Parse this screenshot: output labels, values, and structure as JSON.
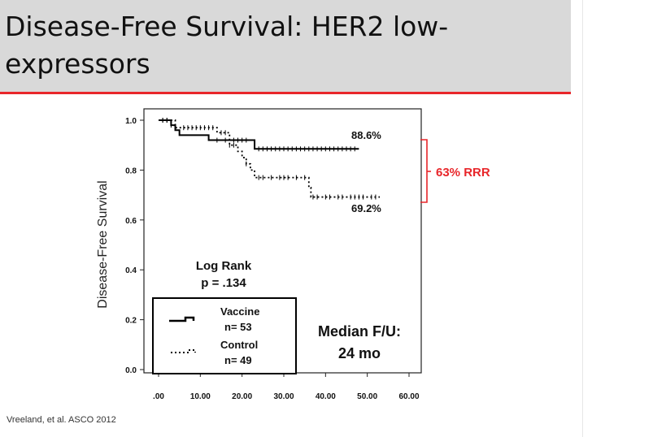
{
  "slide": {
    "title": "Disease-Free Survival: HER2 low-expressors",
    "citation": "Vreeland, et al.  ASCO 2012"
  },
  "chart_data": {
    "type": "line",
    "chart_subtype": "kaplan-meier",
    "title": "",
    "xlabel": "",
    "ylabel": "Disease-Free Survival",
    "xlim": [
      0,
      60
    ],
    "ylim": [
      0,
      1.0
    ],
    "x_ticks": [
      ".00",
      "10.00",
      "20.00",
      "30.00",
      "40.00",
      "50.00",
      "60.00"
    ],
    "y_ticks": [
      "0.0",
      "0.2",
      "0.4",
      "0.6",
      "0.8",
      "1.0"
    ],
    "grid": false,
    "series": [
      {
        "name": "Vaccine",
        "n_label": "n= 53",
        "line_style": "solid",
        "steps": [
          [
            0,
            1.0
          ],
          [
            3,
            0.98
          ],
          [
            4,
            0.96
          ],
          [
            5,
            0.94
          ],
          [
            12,
            0.92
          ],
          [
            23,
            0.885
          ],
          [
            48,
            0.885
          ]
        ],
        "censor_x": [
          1,
          2,
          3,
          14,
          16,
          18,
          19,
          20,
          21,
          24,
          25,
          26,
          27,
          28,
          29,
          30,
          31,
          32,
          33,
          34,
          35,
          36,
          37,
          38,
          39,
          40,
          41,
          42,
          43,
          44,
          45,
          46,
          47
        ],
        "end_label": "88.6%"
      },
      {
        "name": "Control",
        "n_label": "n= 49",
        "line_style": "dotted",
        "steps": [
          [
            0,
            1.0
          ],
          [
            4,
            0.97
          ],
          [
            14,
            0.95
          ],
          [
            17,
            0.9
          ],
          [
            19,
            0.875
          ],
          [
            20,
            0.85
          ],
          [
            21,
            0.825
          ],
          [
            22,
            0.8
          ],
          [
            23,
            0.77
          ],
          [
            36,
            0.73
          ],
          [
            36.5,
            0.692
          ],
          [
            53,
            0.692
          ]
        ],
        "censor_x": [
          1,
          2,
          6,
          7,
          8,
          9,
          10,
          11,
          12,
          13,
          15,
          16,
          17,
          18,
          21,
          24,
          25,
          27,
          29,
          30,
          31,
          33,
          35,
          37,
          38,
          40,
          41,
          43,
          44,
          46,
          47,
          48,
          49,
          51,
          52
        ],
        "end_label": "69.2%"
      }
    ],
    "legend_position": "bottom-left",
    "annotations": {
      "log_rank_label": "Log Rank",
      "p_value": "p = .134",
      "median_fu_label": "Median F/U:",
      "median_fu_value": "24 mo",
      "rrr_label": "63% RRR"
    },
    "colors": {
      "line": "#000000",
      "bracket": "#e8262a",
      "rrr_text": "#e8262a",
      "plot_bg": "#ffffff",
      "outer_bg": "#ffffff"
    }
  }
}
